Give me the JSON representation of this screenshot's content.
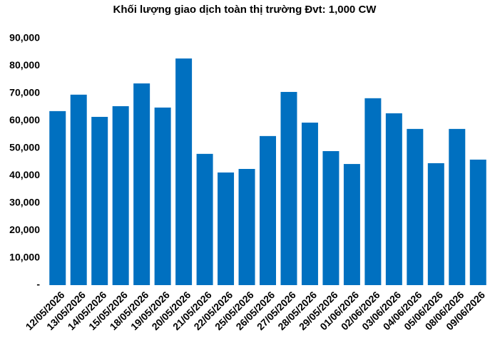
{
  "chart_data": {
    "type": "bar",
    "title": "Khối lượng giao dịch toàn thị trường Đvt: 1,000 CW",
    "categories": [
      "12/05/2026",
      "13/05/2026",
      "14/05/2026",
      "15/05/2026",
      "18/05/2026",
      "19/05/2026",
      "20/05/2026",
      "21/05/2026",
      "22/05/2026",
      "25/05/2026",
      "26/05/2026",
      "27/05/2026",
      "28/05/2026",
      "29/05/2026",
      "01/06/2026",
      "02/06/2026",
      "03/06/2026",
      "04/06/2026",
      "05/06/2026",
      "08/06/2026",
      "09/06/2026"
    ],
    "values": [
      63500,
      69500,
      61400,
      65300,
      73600,
      64800,
      82700,
      47900,
      41100,
      42400,
      54400,
      70500,
      59300,
      48900,
      44200,
      68200,
      62700,
      57000,
      44500,
      57000,
      45800
    ],
    "color": "#0070c0",
    "ylim": [
      0,
      90000
    ],
    "yticks": [
      {
        "value": 0,
        "label": "-"
      },
      {
        "value": 10000,
        "label": "10,000"
      },
      {
        "value": 20000,
        "label": "20,000"
      },
      {
        "value": 30000,
        "label": "30,000"
      },
      {
        "value": 40000,
        "label": "40,000"
      },
      {
        "value": 50000,
        "label": "50,000"
      },
      {
        "value": 60000,
        "label": "60,000"
      },
      {
        "value": 70000,
        "label": "70,000"
      },
      {
        "value": 80000,
        "label": "80,000"
      },
      {
        "value": 90000,
        "label": "90,000"
      }
    ],
    "grid": false
  }
}
